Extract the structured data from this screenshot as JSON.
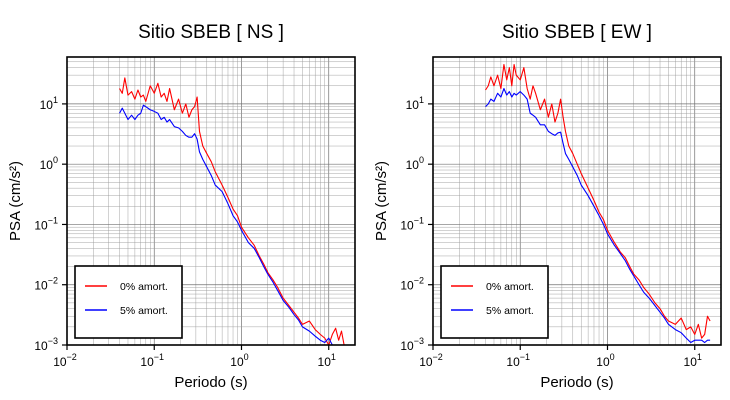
{
  "chart_data": [
    {
      "type": "line",
      "title": "Sitio SBEB [ NS ]",
      "xlabel": "Periodo (s)",
      "ylabel": "PSA (cm/s²)",
      "xscale": "log",
      "yscale": "log",
      "xlim": [
        0.01,
        20
      ],
      "ylim": [
        0.001,
        60
      ],
      "xticks": [
        {
          "value": 0.01,
          "base": "10",
          "exp": "−2"
        },
        {
          "value": 0.1,
          "base": "10",
          "exp": "−1"
        },
        {
          "value": 1,
          "base": "10",
          "exp": "0"
        },
        {
          "value": 10,
          "base": "10",
          "exp": "1"
        }
      ],
      "yticks": [
        {
          "value": 0.001,
          "base": "10",
          "exp": "−3"
        },
        {
          "value": 0.01,
          "base": "10",
          "exp": "−2"
        },
        {
          "value": 0.1,
          "base": "10",
          "exp": "−1"
        },
        {
          "value": 1,
          "base": "10",
          "exp": "0"
        },
        {
          "value": 10,
          "base": "10",
          "exp": "1"
        }
      ],
      "grid": true,
      "legend": "bottom-left",
      "series": [
        {
          "name": "0% amort.",
          "color": "#ff0000",
          "x": [
            0.04,
            0.043,
            0.046,
            0.05,
            0.055,
            0.06,
            0.065,
            0.07,
            0.075,
            0.08,
            0.09,
            0.1,
            0.11,
            0.12,
            0.13,
            0.14,
            0.15,
            0.17,
            0.19,
            0.21,
            0.23,
            0.25,
            0.27,
            0.29,
            0.31,
            0.33,
            0.36,
            0.4,
            0.45,
            0.5,
            0.6,
            0.7,
            0.8,
            0.9,
            1.0,
            1.2,
            1.4,
            1.6,
            1.8,
            2.0,
            2.3,
            2.6,
            3.0,
            3.5,
            4.0,
            4.5,
            5.0,
            6.0,
            7.0,
            8.0,
            9.0,
            10.0,
            11.0,
            12.0,
            13.0,
            14.0,
            15.0
          ],
          "y": [
            18,
            15,
            27,
            14,
            16,
            12,
            17,
            13,
            14,
            11,
            20,
            15,
            22,
            13,
            15,
            11,
            18,
            8,
            12,
            7,
            10,
            6,
            8,
            9,
            13,
            3.5,
            2.0,
            1.5,
            1.1,
            0.75,
            0.45,
            0.28,
            0.18,
            0.14,
            0.09,
            0.06,
            0.045,
            0.03,
            0.022,
            0.016,
            0.012,
            0.009,
            0.006,
            0.0045,
            0.0035,
            0.0028,
            0.0022,
            0.0025,
            0.0018,
            0.0015,
            0.0013,
            0.001,
            0.0015,
            0.0019,
            0.0012,
            0.0017,
            0.001
          ]
        },
        {
          "name": "5% amort.",
          "color": "#0000ff",
          "x": [
            0.04,
            0.043,
            0.046,
            0.05,
            0.055,
            0.06,
            0.065,
            0.07,
            0.075,
            0.08,
            0.09,
            0.1,
            0.11,
            0.12,
            0.13,
            0.14,
            0.15,
            0.17,
            0.19,
            0.21,
            0.23,
            0.25,
            0.27,
            0.29,
            0.31,
            0.33,
            0.36,
            0.4,
            0.45,
            0.5,
            0.6,
            0.7,
            0.8,
            0.9,
            1.0,
            1.2,
            1.4,
            1.6,
            1.8,
            2.0,
            2.3,
            2.6,
            3.0,
            3.5,
            4.0,
            4.5,
            5.0,
            6.0,
            7.0,
            8.0,
            9.0,
            10.0,
            11.0
          ],
          "y": [
            7,
            8.5,
            7,
            5.5,
            6.5,
            5.5,
            6.5,
            7,
            9.5,
            9,
            8,
            7.5,
            7,
            5.5,
            6,
            5,
            5.5,
            4.2,
            4,
            3.5,
            3,
            2.8,
            2.8,
            3.2,
            2.6,
            1.6,
            1.2,
            0.9,
            0.65,
            0.45,
            0.35,
            0.22,
            0.14,
            0.11,
            0.08,
            0.05,
            0.04,
            0.028,
            0.02,
            0.015,
            0.011,
            0.008,
            0.0055,
            0.0042,
            0.0032,
            0.0026,
            0.002,
            0.0017,
            0.0014,
            0.0012,
            0.0011,
            0.0013,
            0.001
          ]
        }
      ]
    },
    {
      "type": "line",
      "title": "Sitio SBEB [ EW ]",
      "xlabel": "Periodo (s)",
      "ylabel": "PSA (cm/s²)",
      "xscale": "log",
      "yscale": "log",
      "xlim": [
        0.01,
        20
      ],
      "ylim": [
        0.001,
        60
      ],
      "xticks": [
        {
          "value": 0.01,
          "base": "10",
          "exp": "−2"
        },
        {
          "value": 0.1,
          "base": "10",
          "exp": "−1"
        },
        {
          "value": 1,
          "base": "10",
          "exp": "0"
        },
        {
          "value": 10,
          "base": "10",
          "exp": "1"
        }
      ],
      "yticks": [
        {
          "value": 0.001,
          "base": "10",
          "exp": "−3"
        },
        {
          "value": 0.01,
          "base": "10",
          "exp": "−2"
        },
        {
          "value": 0.1,
          "base": "10",
          "exp": "−1"
        },
        {
          "value": 1,
          "base": "10",
          "exp": "0"
        },
        {
          "value": 10,
          "base": "10",
          "exp": "1"
        }
      ],
      "grid": true,
      "legend": "bottom-left",
      "series": [
        {
          "name": "0% amort.",
          "color": "#ff0000",
          "x": [
            0.04,
            0.043,
            0.046,
            0.05,
            0.055,
            0.06,
            0.065,
            0.07,
            0.075,
            0.08,
            0.085,
            0.09,
            0.1,
            0.11,
            0.12,
            0.13,
            0.14,
            0.15,
            0.17,
            0.19,
            0.21,
            0.23,
            0.25,
            0.27,
            0.29,
            0.31,
            0.33,
            0.36,
            0.4,
            0.45,
            0.5,
            0.6,
            0.7,
            0.8,
            0.9,
            1.0,
            1.2,
            1.4,
            1.6,
            1.8,
            2.0,
            2.3,
            2.6,
            3.0,
            3.5,
            4.0,
            4.5,
            5.0,
            6.0,
            7.0,
            8.0,
            9.0,
            10.0,
            11.0,
            12.0,
            13.0,
            14.0,
            15.0
          ],
          "y": [
            17,
            20,
            28,
            20,
            30,
            18,
            45,
            25,
            40,
            20,
            45,
            30,
            25,
            40,
            18,
            12,
            20,
            15,
            8,
            12,
            6,
            10,
            5,
            7,
            12,
            6,
            3.5,
            2,
            1.5,
            1.0,
            0.7,
            0.4,
            0.25,
            0.16,
            0.12,
            0.08,
            0.05,
            0.035,
            0.028,
            0.02,
            0.015,
            0.012,
            0.009,
            0.007,
            0.005,
            0.004,
            0.003,
            0.0025,
            0.0022,
            0.0028,
            0.0018,
            0.002,
            0.0015,
            0.0022,
            0.0013,
            0.0015,
            0.003,
            0.0025
          ]
        },
        {
          "name": "5% amort.",
          "color": "#0000ff",
          "x": [
            0.04,
            0.043,
            0.046,
            0.05,
            0.055,
            0.06,
            0.065,
            0.07,
            0.075,
            0.08,
            0.085,
            0.09,
            0.1,
            0.11,
            0.12,
            0.13,
            0.14,
            0.15,
            0.17,
            0.19,
            0.21,
            0.23,
            0.25,
            0.27,
            0.29,
            0.31,
            0.33,
            0.36,
            0.4,
            0.45,
            0.5,
            0.6,
            0.7,
            0.8,
            0.9,
            1.0,
            1.2,
            1.4,
            1.6,
            1.8,
            2.0,
            2.3,
            2.6,
            3.0,
            3.5,
            4.0,
            4.5,
            5.0,
            6.0,
            7.0,
            8.0,
            9.0,
            10.0,
            11.0,
            12.0,
            13.0,
            14.0,
            15.0
          ],
          "y": [
            9,
            10,
            12,
            11,
            15,
            13,
            18,
            14,
            16,
            13,
            15,
            14,
            16,
            14,
            12,
            7,
            6.5,
            6,
            4.5,
            4.5,
            3.5,
            3.2,
            3,
            3.3,
            3.4,
            2.2,
            1.5,
            1.2,
            0.9,
            0.65,
            0.45,
            0.3,
            0.2,
            0.14,
            0.1,
            0.07,
            0.045,
            0.033,
            0.025,
            0.018,
            0.014,
            0.01,
            0.0075,
            0.006,
            0.0045,
            0.0035,
            0.0028,
            0.0022,
            0.0018,
            0.0016,
            0.0013,
            0.0011,
            0.0012,
            0.0012,
            0.0012,
            0.0011,
            0.0012,
            0.0012
          ]
        }
      ]
    }
  ]
}
